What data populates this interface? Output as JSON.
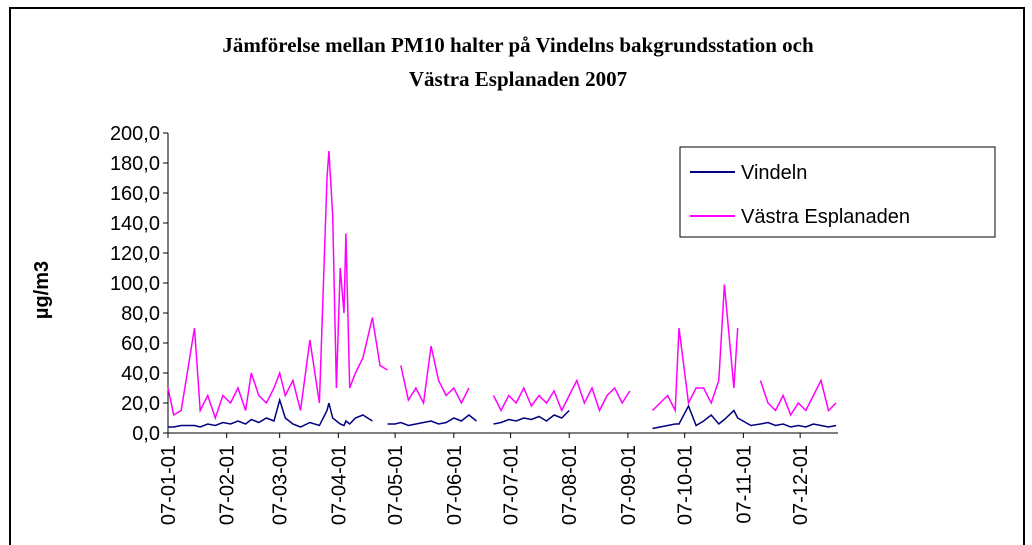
{
  "chart_data": {
    "type": "line",
    "title": [
      "Jämförelse mellan PM10 halter på Vindelns bakgrundsstation och",
      "Västra Esplanaden 2007"
    ],
    "y_label": "µg/m3",
    "legend": "top-right",
    "xlim": [
      "07-01-01",
      "07-12-21"
    ],
    "xticks": [
      "07-01-01",
      "07-02-01",
      "07-03-01",
      "07-04-01",
      "07-05-01",
      "07-06-01",
      "07-07-01",
      "07-08-01",
      "07-09-01",
      "07-10-01",
      "07-11-01",
      "07-12-01"
    ],
    "ylim": [
      0,
      200
    ],
    "yticks": [
      {
        "value": 0,
        "label": "0,0"
      },
      {
        "value": 20,
        "label": "20,0"
      },
      {
        "value": 40,
        "label": "40,0"
      },
      {
        "value": 60,
        "label": "60,0"
      },
      {
        "value": 80,
        "label": "80,0"
      },
      {
        "value": 100,
        "label": "100,0"
      },
      {
        "value": 120,
        "label": "120,0"
      },
      {
        "value": 140,
        "label": "140,0"
      },
      {
        "value": 160,
        "label": "160,0"
      },
      {
        "value": 180,
        "label": "180,0"
      },
      {
        "value": 200,
        "label": "200,0"
      }
    ],
    "x": [
      "07-01-01",
      "07-01-04",
      "07-01-08",
      "07-01-15",
      "07-01-18",
      "07-01-22",
      "07-01-26",
      "07-01-30",
      "07-02-03",
      "07-02-07",
      "07-02-11",
      "07-02-14",
      "07-02-18",
      "07-02-22",
      "07-02-26",
      "07-03-01",
      "07-03-04",
      "07-03-08",
      "07-03-12",
      "07-03-17",
      "07-03-22",
      "07-03-26",
      "07-03-27",
      "07-03-29",
      "07-03-31",
      "07-04-02",
      "07-04-04",
      "07-04-05",
      "07-04-07",
      "07-04-10",
      "07-04-14",
      "07-04-19",
      "07-04-23",
      "07-04-27",
      "07-05-01",
      "07-05-04",
      "07-05-08",
      "07-05-12",
      "07-05-16",
      "07-05-20",
      "07-05-24",
      "07-05-28",
      "07-06-01",
      "07-06-05",
      "07-06-09",
      "07-06-13",
      "07-06-17",
      "07-06-22",
      "07-06-26",
      "07-06-30",
      "07-07-04",
      "07-07-08",
      "07-07-12",
      "07-07-16",
      "07-07-20",
      "07-07-24",
      "07-07-28",
      "07-08-01",
      "07-08-05",
      "07-08-09",
      "07-08-13",
      "07-08-17",
      "07-08-21",
      "07-08-25",
      "07-08-29",
      "07-09-02",
      "07-09-06",
      "07-09-10",
      "07-09-14",
      "07-09-18",
      "07-09-22",
      "07-09-26",
      "07-09-28",
      "07-10-03",
      "07-10-07",
      "07-10-11",
      "07-10-15",
      "07-10-19",
      "07-10-22",
      "07-10-27",
      "07-10-29",
      "07-11-05",
      "07-11-10",
      "07-11-14",
      "07-11-18",
      "07-11-22",
      "07-11-26",
      "07-11-30",
      "07-12-04",
      "07-12-08",
      "07-12-12",
      "07-12-16",
      "07-12-20"
    ],
    "series": [
      {
        "name": "Vindeln",
        "color": "#000080",
        "values": [
          4,
          4,
          5,
          5,
          4,
          6,
          5,
          7,
          6,
          8,
          6,
          9,
          7,
          10,
          8,
          22,
          10,
          6,
          4,
          7,
          5,
          15,
          20,
          10,
          8,
          6,
          5,
          8,
          6,
          10,
          12,
          8,
          null,
          6,
          6,
          7,
          5,
          6,
          7,
          8,
          6,
          7,
          10,
          8,
          12,
          8,
          null,
          6,
          7,
          9,
          8,
          10,
          9,
          11,
          8,
          12,
          10,
          15,
          null,
          null,
          null,
          null,
          null,
          null,
          null,
          null,
          null,
          null,
          3,
          4,
          5,
          6,
          6,
          18,
          5,
          8,
          12,
          6,
          9,
          15,
          10,
          5,
          6,
          7,
          5,
          6,
          4,
          5,
          4,
          6,
          5,
          4,
          5
        ]
      },
      {
        "name": "Västra Esplanaden",
        "color": "#ff00ff",
        "values": [
          30,
          12,
          15,
          70,
          15,
          25,
          10,
          25,
          20,
          30,
          15,
          40,
          25,
          20,
          30,
          40,
          25,
          35,
          15,
          62,
          20,
          170,
          188,
          145,
          30,
          110,
          80,
          133,
          30,
          40,
          50,
          77,
          45,
          42,
          null,
          45,
          22,
          30,
          20,
          58,
          35,
          25,
          30,
          20,
          30,
          null,
          null,
          25,
          15,
          25,
          20,
          30,
          18,
          25,
          20,
          28,
          15,
          25,
          35,
          20,
          30,
          15,
          25,
          30,
          20,
          28,
          null,
          null,
          15,
          20,
          25,
          15,
          70,
          20,
          30,
          30,
          20,
          35,
          99,
          30,
          70,
          null,
          35,
          20,
          15,
          25,
          12,
          20,
          15,
          25,
          35,
          15,
          20
        ]
      }
    ]
  }
}
